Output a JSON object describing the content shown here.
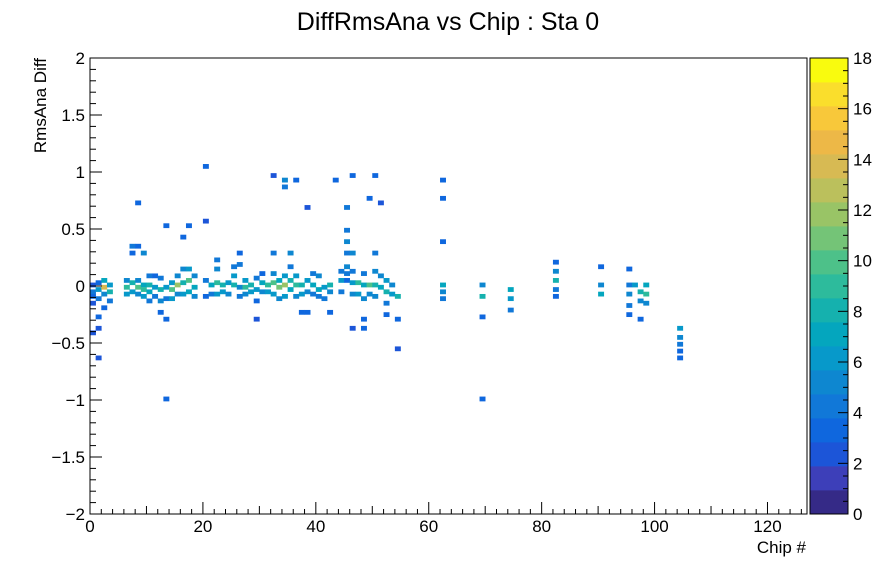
{
  "chart_data": {
    "type": "heatmap",
    "title": "DiffRmsAna vs Chip : Sta 0",
    "xlabel": "Chip #",
    "ylabel": "RmsAna Diff",
    "xlim": [
      0,
      127
    ],
    "ylim": [
      -2,
      2
    ],
    "x_ticks": [
      "0",
      "20",
      "40",
      "60",
      "80",
      "100",
      "120"
    ],
    "y_ticks": [
      "−2",
      "−1.5",
      "−1",
      "−0.5",
      "0",
      "0.5",
      "1",
      "1.5",
      "2"
    ],
    "colorbar": {
      "range": [
        0,
        18
      ],
      "ticks": [
        "0",
        "2",
        "4",
        "6",
        "8",
        "10",
        "12",
        "14",
        "16",
        "18"
      ],
      "palette": [
        "#352a87",
        "#3d3fb9",
        "#1c55d8",
        "#0f67de",
        "#1178d8",
        "#0e87d0",
        "#0799ca",
        "#04a6be",
        "#15b1ae",
        "#2dbb9c",
        "#4dc189",
        "#74c477",
        "#99c466",
        "#bbc05c",
        "#d7ba53",
        "#edb847",
        "#f8c83a",
        "#fade2c",
        "#f9fb0e"
      ]
    },
    "bin_width_x": 1,
    "bin_height_y": 0.02,
    "cells": [
      [
        0,
        0.02,
        2
      ],
      [
        0,
        -0.04,
        4
      ],
      [
        0,
        -0.08,
        3
      ],
      [
        0,
        -0.14,
        2
      ],
      [
        0,
        -0.4,
        2
      ],
      [
        1,
        0.04,
        3
      ],
      [
        1,
        -0.02,
        6
      ],
      [
        1,
        -0.1,
        4
      ],
      [
        1,
        -0.26,
        3
      ],
      [
        1,
        -0.36,
        2
      ],
      [
        1,
        -0.62,
        2
      ],
      [
        2,
        0.06,
        7
      ],
      [
        2,
        0.0,
        14
      ],
      [
        2,
        -0.06,
        5
      ],
      [
        2,
        -0.18,
        3
      ],
      [
        3,
        0.02,
        6
      ],
      [
        3,
        -0.04,
        8
      ],
      [
        3,
        -0.12,
        4
      ],
      [
        6,
        0.06,
        5
      ],
      [
        6,
        0.0,
        9
      ],
      [
        6,
        -0.06,
        6
      ],
      [
        7,
        0.36,
        4
      ],
      [
        7,
        0.3,
        3
      ],
      [
        7,
        0.04,
        8
      ],
      [
        7,
        -0.04,
        6
      ],
      [
        8,
        0.74,
        3
      ],
      [
        8,
        0.36,
        3
      ],
      [
        8,
        0.06,
        5
      ],
      [
        8,
        0.0,
        10
      ],
      [
        8,
        -0.06,
        5
      ],
      [
        9,
        0.3,
        5
      ],
      [
        9,
        0.02,
        7
      ],
      [
        9,
        -0.02,
        9
      ],
      [
        9,
        -0.08,
        6
      ],
      [
        10,
        0.1,
        4
      ],
      [
        10,
        0.02,
        8
      ],
      [
        10,
        -0.04,
        7
      ],
      [
        10,
        -0.12,
        4
      ],
      [
        11,
        0.1,
        3
      ],
      [
        11,
        0.0,
        6
      ],
      [
        11,
        -0.08,
        4
      ],
      [
        12,
        0.08,
        4
      ],
      [
        12,
        -0.02,
        8
      ],
      [
        12,
        -0.12,
        5
      ],
      [
        12,
        -0.22,
        3
      ],
      [
        13,
        0.54,
        3
      ],
      [
        13,
        0.0,
        6
      ],
      [
        13,
        -0.1,
        4
      ],
      [
        13,
        -0.28,
        3
      ],
      [
        13,
        -0.98,
        3
      ],
      [
        14,
        0.04,
        6
      ],
      [
        14,
        -0.02,
        10
      ],
      [
        14,
        -0.1,
        6
      ],
      [
        15,
        0.1,
        5
      ],
      [
        15,
        0.02,
        12
      ],
      [
        15,
        -0.06,
        5
      ],
      [
        16,
        0.44,
        3
      ],
      [
        16,
        0.16,
        5
      ],
      [
        16,
        0.04,
        8
      ],
      [
        16,
        -0.06,
        6
      ],
      [
        17,
        0.54,
        3
      ],
      [
        17,
        0.16,
        6
      ],
      [
        17,
        0.06,
        10
      ],
      [
        17,
        -0.04,
        7
      ],
      [
        18,
        0.1,
        5
      ],
      [
        18,
        0.0,
        7
      ],
      [
        18,
        -0.08,
        5
      ],
      [
        20,
        1.06,
        3
      ],
      [
        20,
        0.58,
        2
      ],
      [
        20,
        0.06,
        4
      ],
      [
        20,
        -0.08,
        3
      ],
      [
        21,
        0.02,
        7
      ],
      [
        21,
        -0.06,
        4
      ],
      [
        22,
        0.24,
        4
      ],
      [
        22,
        0.16,
        5
      ],
      [
        22,
        0.04,
        9
      ],
      [
        22,
        -0.06,
        6
      ],
      [
        23,
        0.02,
        8
      ],
      [
        23,
        -0.04,
        6
      ],
      [
        24,
        0.04,
        6
      ],
      [
        24,
        -0.06,
        5
      ],
      [
        25,
        0.18,
        4
      ],
      [
        25,
        0.1,
        6
      ],
      [
        25,
        0.02,
        8
      ],
      [
        26,
        0.3,
        3
      ],
      [
        26,
        0.2,
        4
      ],
      [
        26,
        0.0,
        5
      ],
      [
        26,
        -0.08,
        4
      ],
      [
        27,
        0.06,
        6
      ],
      [
        27,
        0.0,
        9
      ],
      [
        27,
        -0.06,
        5
      ],
      [
        28,
        0.02,
        8
      ],
      [
        28,
        -0.04,
        6
      ],
      [
        29,
        0.08,
        4
      ],
      [
        29,
        -0.02,
        6
      ],
      [
        29,
        -0.12,
        3
      ],
      [
        29,
        -0.28,
        2
      ],
      [
        30,
        0.12,
        3
      ],
      [
        30,
        0.04,
        7
      ],
      [
        30,
        -0.04,
        5
      ],
      [
        31,
        0.02,
        9
      ],
      [
        31,
        -0.04,
        6
      ],
      [
        32,
        0.98,
        2
      ],
      [
        32,
        0.3,
        4
      ],
      [
        32,
        0.12,
        5
      ],
      [
        32,
        0.04,
        10
      ],
      [
        32,
        -0.06,
        6
      ],
      [
        33,
        0.06,
        7
      ],
      [
        33,
        0.0,
        11
      ],
      [
        33,
        -0.1,
        5
      ],
      [
        34,
        0.94,
        5
      ],
      [
        34,
        0.88,
        4
      ],
      [
        34,
        0.1,
        6
      ],
      [
        34,
        0.02,
        12
      ],
      [
        34,
        -0.08,
        6
      ],
      [
        35,
        0.3,
        5
      ],
      [
        35,
        0.18,
        4
      ],
      [
        35,
        0.06,
        8
      ],
      [
        35,
        -0.02,
        7
      ],
      [
        36,
        0.94,
        3
      ],
      [
        36,
        0.1,
        6
      ],
      [
        36,
        0.02,
        9
      ],
      [
        36,
        -0.08,
        5
      ],
      [
        37,
        0.02,
        8
      ],
      [
        37,
        -0.06,
        6
      ],
      [
        37,
        -0.22,
        3
      ],
      [
        38,
        0.7,
        2
      ],
      [
        38,
        0.06,
        6
      ],
      [
        38,
        -0.04,
        5
      ],
      [
        38,
        -0.22,
        3
      ],
      [
        39,
        0.12,
        4
      ],
      [
        39,
        0.02,
        7
      ],
      [
        39,
        -0.06,
        4
      ],
      [
        40,
        0.1,
        5
      ],
      [
        40,
        -0.02,
        7
      ],
      [
        40,
        -0.08,
        4
      ],
      [
        41,
        0.0,
        6
      ],
      [
        41,
        -0.1,
        4
      ],
      [
        42,
        0.02,
        8
      ],
      [
        42,
        -0.04,
        5
      ],
      [
        42,
        -0.22,
        3
      ],
      [
        43,
        0.94,
        3
      ],
      [
        44,
        0.14,
        4
      ],
      [
        44,
        0.06,
        6
      ],
      [
        44,
        -0.04,
        4
      ],
      [
        45,
        0.7,
        4
      ],
      [
        45,
        0.5,
        4
      ],
      [
        45,
        0.4,
        5
      ],
      [
        45,
        0.3,
        4
      ],
      [
        45,
        0.18,
        5
      ],
      [
        45,
        0.12,
        4
      ],
      [
        45,
        0.06,
        3
      ],
      [
        46,
        0.98,
        3
      ],
      [
        46,
        0.3,
        5
      ],
      [
        46,
        0.14,
        4
      ],
      [
        46,
        0.04,
        6
      ],
      [
        46,
        -0.06,
        5
      ],
      [
        46,
        -0.36,
        2
      ],
      [
        47,
        0.04,
        9
      ],
      [
        47,
        -0.06,
        6
      ],
      [
        48,
        0.12,
        4
      ],
      [
        48,
        0.02,
        7
      ],
      [
        48,
        -0.1,
        5
      ],
      [
        48,
        -0.28,
        3
      ],
      [
        48,
        -0.36,
        3
      ],
      [
        49,
        0.78,
        3
      ],
      [
        49,
        0.02,
        10
      ],
      [
        49,
        -0.06,
        5
      ],
      [
        50,
        0.98,
        3
      ],
      [
        50,
        0.3,
        4
      ],
      [
        50,
        0.14,
        5
      ],
      [
        50,
        0.02,
        8
      ],
      [
        50,
        -0.08,
        5
      ],
      [
        51,
        0.74,
        2
      ],
      [
        51,
        0.1,
        5
      ],
      [
        51,
        0.0,
        7
      ],
      [
        52,
        0.06,
        6
      ],
      [
        52,
        -0.04,
        8
      ],
      [
        52,
        -0.14,
        4
      ],
      [
        52,
        -0.24,
        3
      ],
      [
        53,
        0.02,
        5
      ],
      [
        53,
        -0.06,
        6
      ],
      [
        54,
        -0.08,
        8
      ],
      [
        54,
        -0.28,
        3
      ],
      [
        54,
        -0.54,
        2
      ],
      [
        62,
        0.94,
        3
      ],
      [
        62,
        0.78,
        3
      ],
      [
        62,
        0.4,
        3
      ],
      [
        62,
        0.02,
        7
      ],
      [
        62,
        -0.04,
        5
      ],
      [
        62,
        -0.1,
        4
      ],
      [
        69,
        0.02,
        5
      ],
      [
        69,
        -0.08,
        8
      ],
      [
        69,
        -0.26,
        3
      ],
      [
        69,
        -0.98,
        3
      ],
      [
        74,
        -0.02,
        7
      ],
      [
        74,
        -0.1,
        6
      ],
      [
        74,
        -0.2,
        4
      ],
      [
        82,
        0.22,
        3
      ],
      [
        82,
        0.14,
        5
      ],
      [
        82,
        0.06,
        8
      ],
      [
        82,
        -0.02,
        4
      ],
      [
        82,
        -0.08,
        3
      ],
      [
        90,
        0.18,
        3
      ],
      [
        90,
        0.02,
        5
      ],
      [
        90,
        -0.06,
        7
      ],
      [
        95,
        0.16,
        3
      ],
      [
        95,
        0.02,
        4
      ],
      [
        95,
        -0.06,
        5
      ],
      [
        95,
        -0.16,
        4
      ],
      [
        95,
        -0.24,
        3
      ],
      [
        96,
        0.02,
        6
      ],
      [
        97,
        -0.04,
        8
      ],
      [
        97,
        -0.12,
        5
      ],
      [
        97,
        -0.28,
        3
      ],
      [
        98,
        0.02,
        7
      ],
      [
        98,
        -0.06,
        9
      ],
      [
        98,
        -0.14,
        5
      ],
      [
        104,
        -0.36,
        6
      ],
      [
        104,
        -0.44,
        5
      ],
      [
        104,
        -0.5,
        4
      ],
      [
        104,
        -0.56,
        3
      ],
      [
        104,
        -0.62,
        3
      ]
    ]
  }
}
